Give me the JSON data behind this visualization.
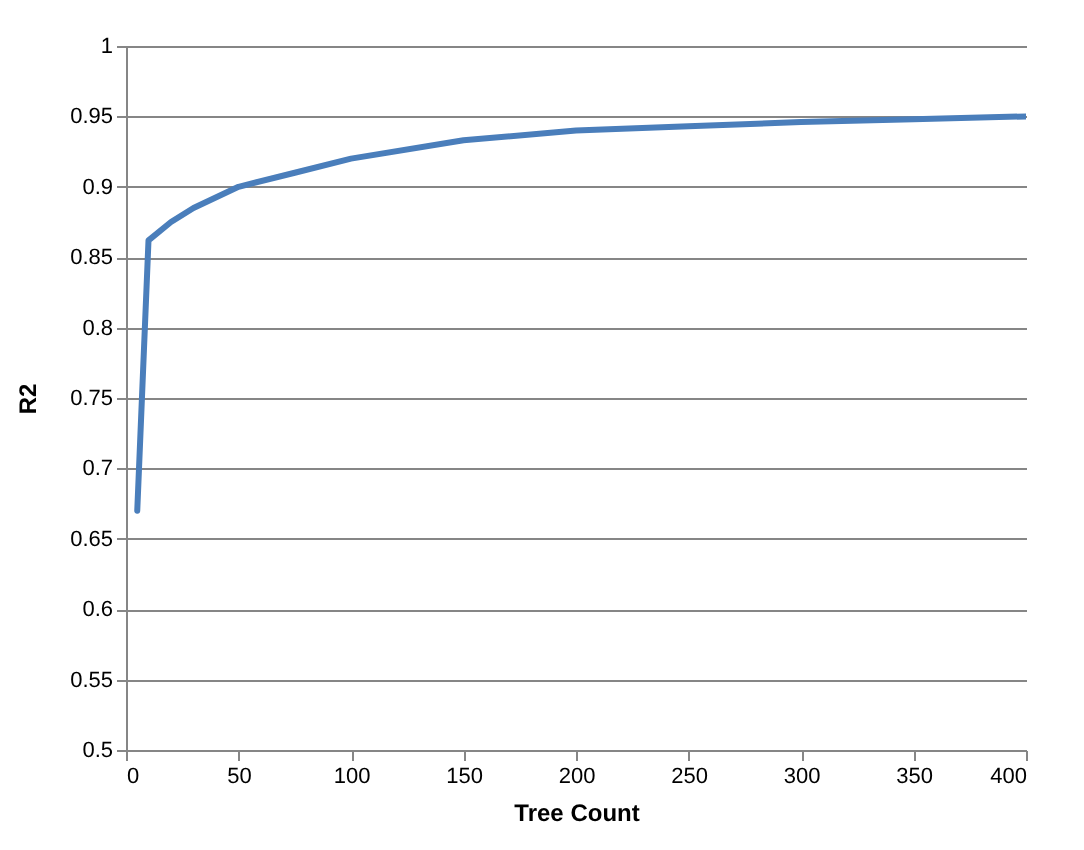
{
  "chart_data": {
    "type": "line",
    "xlabel": "Tree Count",
    "ylabel": "R2",
    "x": [
      5,
      10,
      20,
      30,
      50,
      75,
      100,
      150,
      200,
      250,
      300,
      350,
      400
    ],
    "series": [
      {
        "color": "#4a7ebb",
        "values": [
          0.67,
          0.862,
          0.875,
          0.885,
          0.9,
          0.91,
          0.92,
          0.933,
          0.94,
          0.943,
          0.946,
          0.948,
          0.95
        ]
      }
    ],
    "xlim": [
      0,
      400
    ],
    "xticks": [
      0,
      50,
      100,
      150,
      200,
      250,
      300,
      350,
      400
    ],
    "ylim": [
      0.5,
      1
    ],
    "yticks": [
      0.5,
      0.55,
      0.6,
      0.65,
      0.7,
      0.75,
      0.8,
      0.85,
      0.9,
      0.95,
      1
    ],
    "grid": "y",
    "marker": "none",
    "line_style": "solid"
  }
}
